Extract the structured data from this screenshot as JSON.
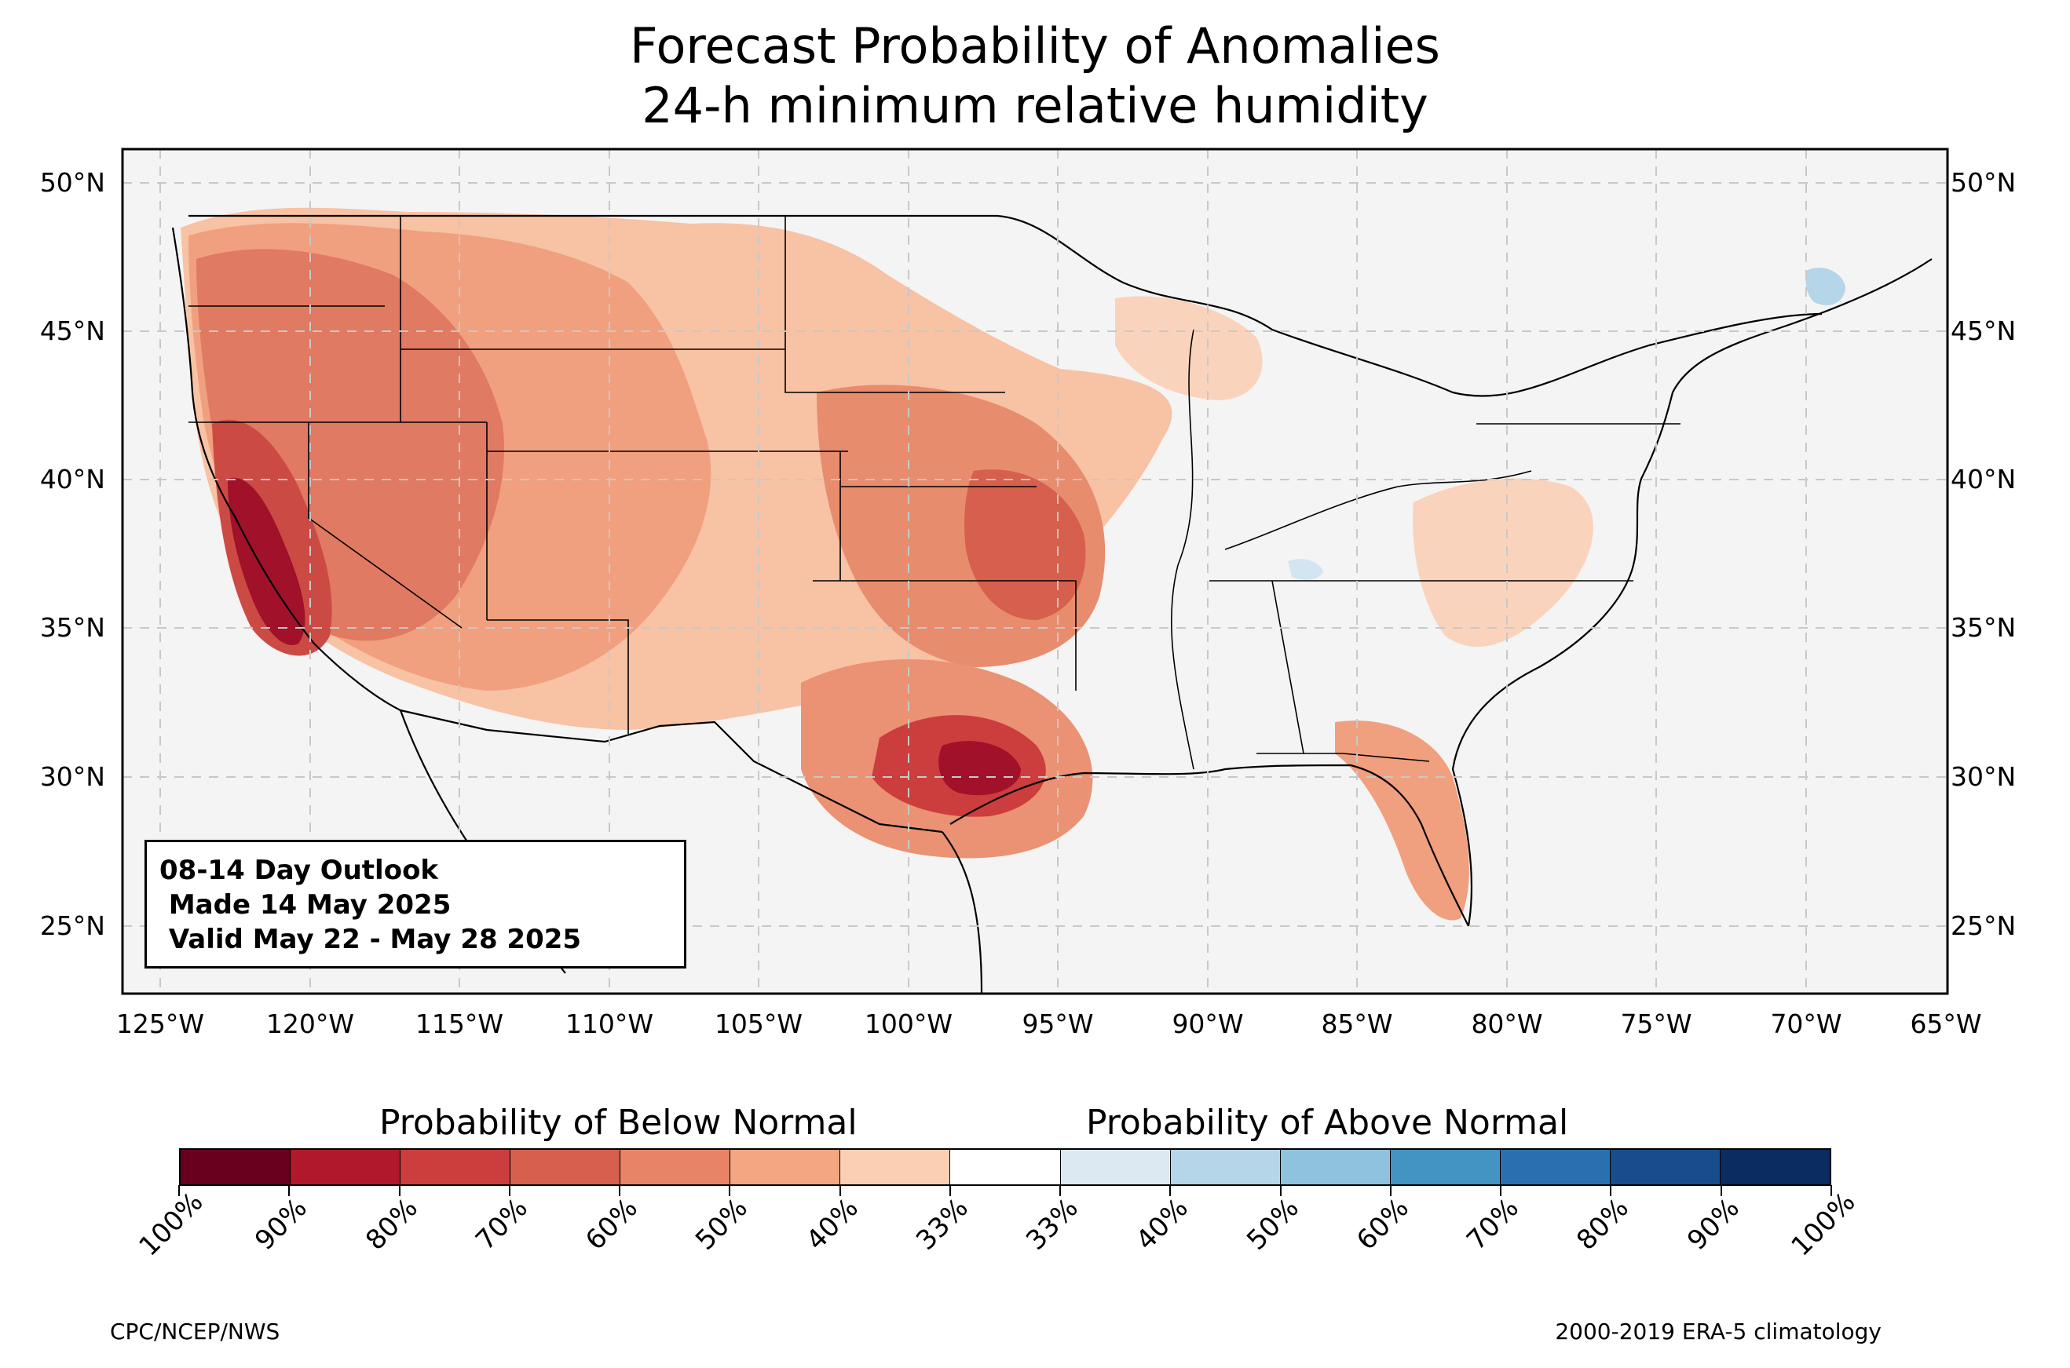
{
  "title": {
    "line1": "Forecast Probability of Anomalies",
    "line2": "24-h minimum relative humidity"
  },
  "map": {
    "lat_labels": [
      "50°N",
      "45°N",
      "40°N",
      "35°N",
      "30°N",
      "25°N"
    ],
    "lon_labels": [
      "125°W",
      "120°W",
      "115°W",
      "110°W",
      "105°W",
      "100°W",
      "95°W",
      "90°W",
      "85°W",
      "80°W",
      "75°W",
      "70°W",
      "65°W"
    ],
    "extent_lon": [
      -126.2,
      -65.2
    ],
    "extent_lat": [
      22.8,
      51.1
    ],
    "gridlines": true,
    "land_color": "#f4f4f4",
    "info_box": {
      "line1": "08-14 Day Outlook",
      "line2": " Made 14 May 2025",
      "line3": " Valid May 22 - May 28 2025"
    }
  },
  "colorbar": {
    "below_label": "Probability of Below Normal",
    "above_label": "Probability of Above Normal",
    "tick_labels": [
      "100%",
      "90%",
      "80%",
      "70%",
      "60%",
      "50%",
      "40%",
      "33%",
      "33%",
      "40%",
      "50%",
      "60%",
      "70%",
      "80%",
      "90%",
      "100%"
    ],
    "colors": [
      "#67001f",
      "#b2182b",
      "#cc3d3d",
      "#d6604d",
      "#e78467",
      "#f4a582",
      "#fbcfb3",
      "#ffffff",
      "#dce9f2",
      "#b5d5e8",
      "#8fc3dd",
      "#4393c3",
      "#2a70b0",
      "#174d8b",
      "#0b2c60"
    ]
  },
  "footer": {
    "left": "CPC/NCEP/NWS",
    "right": "2000-2019 ERA-5 climatology"
  }
}
